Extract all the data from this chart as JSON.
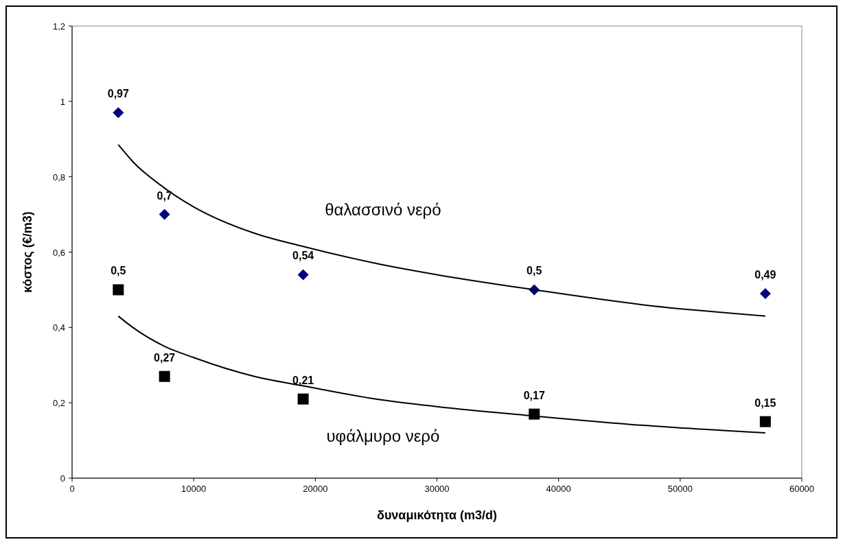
{
  "chart_data": {
    "type": "scatter",
    "xlabel": "δυναμικότητα (m3/d)",
    "ylabel": "κόστος (€/m3)",
    "xlim": [
      0,
      60000
    ],
    "xticks": [
      0,
      10000,
      20000,
      30000,
      40000,
      50000,
      60000
    ],
    "ylim": [
      0,
      1.2
    ],
    "yticks": [
      0,
      {
        "value": 0.2,
        "label": "0,2"
      },
      {
        "value": 0.4,
        "label": "0,4"
      },
      {
        "value": 0.6,
        "label": "0,6"
      },
      {
        "value": 0.8,
        "label": "0,8"
      },
      1,
      {
        "value": 1.2,
        "label": "1,2"
      }
    ],
    "grid": false,
    "series": [
      {
        "marker": "diamond",
        "color": "#000080",
        "x": [
          3800,
          7600,
          19000,
          38000,
          57000
        ],
        "values": [
          0.97,
          0.7,
          0.54,
          0.5,
          0.49
        ],
        "value_labels": [
          "0,97",
          "0,7",
          "0,54",
          "0,5",
          "0,49"
        ]
      },
      {
        "marker": "square",
        "color": "#000000",
        "x": [
          3800,
          7600,
          19000,
          38000,
          57000
        ],
        "values": [
          0.5,
          0.27,
          0.21,
          0.17,
          0.15
        ],
        "value_labels": [
          "0,5",
          "0,27",
          "0,21",
          "0,17",
          "0,15"
        ]
      },
      {
        "type": "line",
        "name": "θαλασσινό νερό",
        "marker": "none",
        "line_style": "solid",
        "color": "#000000",
        "x": [
          3800,
          5000,
          7600,
          10000,
          15000,
          19000,
          25000,
          30000,
          38000,
          47000,
          57000
        ],
        "values": [
          0.885,
          0.84,
          0.77,
          0.72,
          0.65,
          0.615,
          0.57,
          0.54,
          0.5,
          0.46,
          0.43
        ]
      },
      {
        "type": "line",
        "name": "υφάλμυρο νερό",
        "marker": "none",
        "line_style": "solid",
        "color": "#000000",
        "x": [
          3800,
          5000,
          7600,
          10000,
          15000,
          19000,
          25000,
          30000,
          38000,
          47000,
          57000
        ],
        "values": [
          0.43,
          0.4,
          0.35,
          0.32,
          0.27,
          0.245,
          0.21,
          0.19,
          0.165,
          0.14,
          0.12
        ]
      }
    ]
  }
}
